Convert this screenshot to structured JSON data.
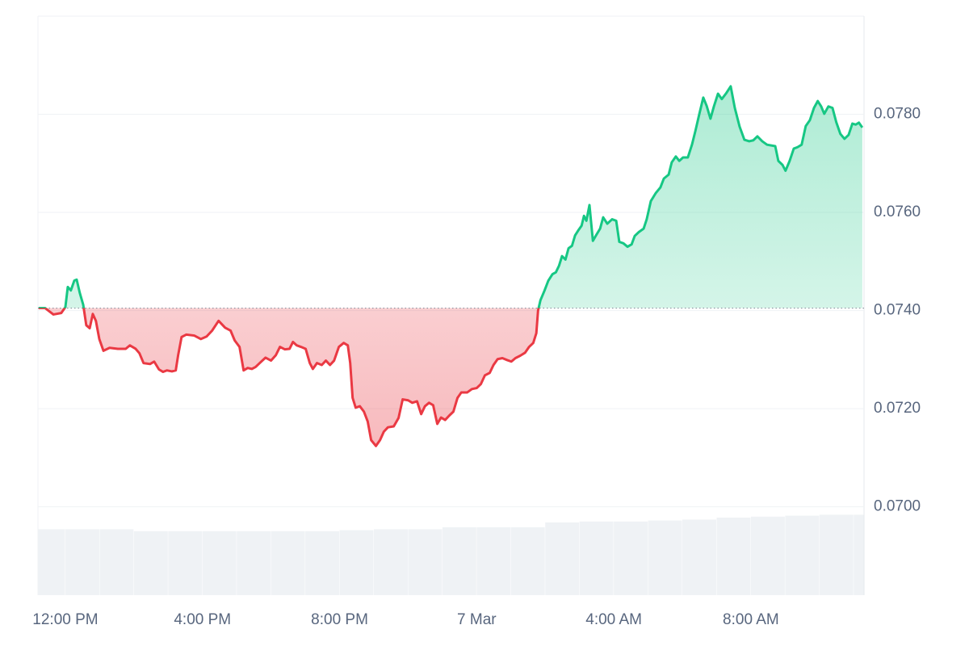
{
  "chart_data": {
    "type": "line",
    "x": [
      11.22,
      11.41,
      11.65,
      11.88,
      12.0,
      12.07,
      12.16,
      12.26,
      12.33,
      12.42,
      12.52,
      12.61,
      12.71,
      12.8,
      12.89,
      12.99,
      13.11,
      13.29,
      13.53,
      13.76,
      13.88,
      14.05,
      14.16,
      14.28,
      14.47,
      14.59,
      14.73,
      14.85,
      14.96,
      15.11,
      15.22,
      15.29,
      15.39,
      15.53,
      15.76,
      15.95,
      16.12,
      16.28,
      16.47,
      16.66,
      16.82,
      16.94,
      17.08,
      17.2,
      17.32,
      17.44,
      17.55,
      17.67,
      17.84,
      18.0,
      18.14,
      18.26,
      18.4,
      18.54,
      18.64,
      18.75,
      18.87,
      19.01,
      19.13,
      19.22,
      19.34,
      19.48,
      19.6,
      19.72,
      19.84,
      19.98,
      20.12,
      20.24,
      20.31,
      20.38,
      20.47,
      20.59,
      20.71,
      20.82,
      20.92,
      21.06,
      21.18,
      21.29,
      21.41,
      21.58,
      21.72,
      21.84,
      22.0,
      22.12,
      22.26,
      22.38,
      22.49,
      22.61,
      22.73,
      22.85,
      22.96,
      23.08,
      23.2,
      23.32,
      23.44,
      23.55,
      23.72,
      23.86,
      24.0,
      24.12,
      24.24,
      24.38,
      24.49,
      24.61,
      24.75,
      24.89,
      25.01,
      25.13,
      25.27,
      25.41,
      25.53,
      25.65,
      25.74,
      25.79,
      25.86,
      25.98,
      26.09,
      26.21,
      26.31,
      26.4,
      26.49,
      26.59,
      26.68,
      26.78,
      26.87,
      26.96,
      27.06,
      27.13,
      27.2,
      27.29,
      27.39,
      27.48,
      27.6,
      27.69,
      27.81,
      27.95,
      28.07,
      28.16,
      28.28,
      28.4,
      28.52,
      28.61,
      28.73,
      28.87,
      28.96,
      29.08,
      29.22,
      29.36,
      29.46,
      29.6,
      29.69,
      29.81,
      29.91,
      30.02,
      30.16,
      30.28,
      30.38,
      30.49,
      30.61,
      30.71,
      30.82,
      30.92,
      31.04,
      31.15,
      31.27,
      31.41,
      31.53,
      31.67,
      31.81,
      31.95,
      32.07,
      32.19,
      32.33,
      32.47,
      32.71,
      32.8,
      32.92,
      33.01,
      33.13,
      33.25,
      33.36,
      33.48,
      33.6,
      33.72,
      33.84,
      33.95,
      34.05,
      34.14,
      34.26,
      34.38,
      34.49,
      34.61,
      34.73,
      34.85,
      34.96,
      35.06,
      35.15,
      35.25
    ],
    "values": [
      0.07405,
      0.07405,
      0.07392,
      0.07395,
      0.07407,
      0.07448,
      0.07441,
      0.07461,
      0.07463,
      0.07436,
      0.07412,
      0.0737,
      0.07364,
      0.07393,
      0.07379,
      0.07342,
      0.07318,
      0.07324,
      0.07322,
      0.07322,
      0.07329,
      0.07322,
      0.07313,
      0.07293,
      0.07291,
      0.07296,
      0.0728,
      0.07275,
      0.07278,
      0.07276,
      0.07278,
      0.07309,
      0.07346,
      0.07351,
      0.07349,
      0.07342,
      0.07347,
      0.07359,
      0.07379,
      0.07365,
      0.07359,
      0.07339,
      0.07326,
      0.07278,
      0.07283,
      0.07281,
      0.07285,
      0.07293,
      0.07304,
      0.07298,
      0.07309,
      0.07326,
      0.07321,
      0.07322,
      0.07336,
      0.07329,
      0.07326,
      0.07322,
      0.07293,
      0.07281,
      0.07293,
      0.07289,
      0.07298,
      0.07289,
      0.07298,
      0.07326,
      0.07334,
      0.07329,
      0.07293,
      0.07222,
      0.07202,
      0.07205,
      0.07194,
      0.07174,
      0.07136,
      0.07124,
      0.07136,
      0.07153,
      0.07162,
      0.07164,
      0.07181,
      0.07219,
      0.07217,
      0.07212,
      0.07215,
      0.07189,
      0.07205,
      0.07212,
      0.07207,
      0.07169,
      0.07182,
      0.07177,
      0.07186,
      0.07194,
      0.07222,
      0.07233,
      0.07233,
      0.0724,
      0.07242,
      0.0725,
      0.07268,
      0.07273,
      0.07289,
      0.07301,
      0.07303,
      0.07299,
      0.07296,
      0.07303,
      0.07308,
      0.07314,
      0.07326,
      0.07334,
      0.07354,
      0.074,
      0.07421,
      0.07441,
      0.07461,
      0.07474,
      0.07478,
      0.07491,
      0.07511,
      0.07504,
      0.07527,
      0.07532,
      0.07553,
      0.07563,
      0.07573,
      0.07593,
      0.07583,
      0.07615,
      0.07542,
      0.07553,
      0.07567,
      0.0759,
      0.07577,
      0.07586,
      0.07583,
      0.0754,
      0.07537,
      0.0753,
      0.07535,
      0.07552,
      0.0756,
      0.07567,
      0.07586,
      0.07623,
      0.07639,
      0.07651,
      0.07669,
      0.07677,
      0.07702,
      0.07714,
      0.07705,
      0.07712,
      0.07712,
      0.07738,
      0.07766,
      0.07799,
      0.07834,
      0.07817,
      0.07791,
      0.07816,
      0.07842,
      0.07831,
      0.07842,
      0.07857,
      0.07813,
      0.07775,
      0.07748,
      0.07745,
      0.07747,
      0.07755,
      0.07745,
      0.07738,
      0.07735,
      0.07705,
      0.07697,
      0.07685,
      0.07705,
      0.0773,
      0.07733,
      0.07738,
      0.07776,
      0.07788,
      0.07813,
      0.07827,
      0.07816,
      0.07801,
      0.07816,
      0.07813,
      0.07784,
      0.0776,
      0.0775,
      0.07758,
      0.07781,
      0.07779,
      0.07783,
      0.07773
    ],
    "baseline": 0.07405,
    "up_color": "#16c784",
    "down_color": "#ea3943",
    "xlim": [
      11.2,
      35.3
    ],
    "xticks": [
      {
        "value": 12,
        "label": "12:00 PM"
      },
      {
        "value": 16,
        "label": "4:00 PM"
      },
      {
        "value": 20,
        "label": "8:00 PM"
      },
      {
        "value": 24,
        "label": "7 Mar"
      },
      {
        "value": 28,
        "label": "4:00 AM"
      },
      {
        "value": 32,
        "label": "8:00 AM"
      }
    ],
    "ylim": [
      0.0682,
      0.08
    ],
    "yticks": [
      {
        "value": 0.07,
        "label": "0.0700"
      },
      {
        "value": 0.072,
        "label": "0.0720"
      },
      {
        "value": 0.074,
        "label": "0.0740"
      },
      {
        "value": 0.076,
        "label": "0.0760"
      },
      {
        "value": 0.078,
        "label": "0.0780"
      }
    ],
    "grid": true,
    "volume": {
      "x": [
        11.2,
        12,
        13,
        14,
        15,
        16,
        17,
        18,
        19,
        20,
        21,
        22,
        23,
        24,
        25,
        26,
        27,
        28,
        29,
        30,
        31,
        32,
        33,
        34,
        35
      ],
      "values": [
        68,
        68,
        68,
        66,
        66,
        66,
        66,
        66,
        66,
        67,
        68,
        68,
        70,
        70,
        70,
        75,
        76,
        76,
        77,
        78,
        80,
        81,
        82,
        83,
        83
      ],
      "color": "#eff2f5",
      "lim": [
        0,
        100
      ]
    }
  }
}
